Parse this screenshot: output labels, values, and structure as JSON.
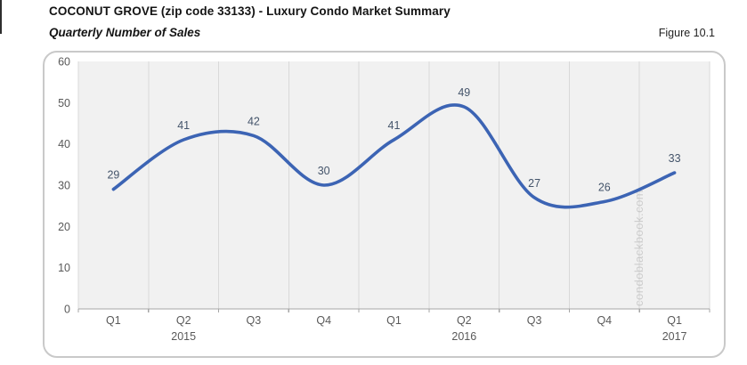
{
  "header": {
    "title": "COCONUT GROVE (zip code 33133) - Luxury Condo Market Summary",
    "subtitle": "Quarterly Number of Sales",
    "figure_label": "Figure 10.1"
  },
  "watermark": "condoblackbook.com",
  "colors": {
    "line": "#3c64b4",
    "data_label": "#44546a",
    "axis_text": "#595959",
    "plot_bg": "#f1f1f1",
    "gridline": "#d9d9d9",
    "axis_line": "#a6a6a6",
    "tick": "#a6a6a6",
    "card_border": "#c9c9c9",
    "watermark": "#c5c5c5"
  },
  "chart_data": {
    "type": "line",
    "title": "Quarterly Number of Sales",
    "categories": [
      "Q1",
      "Q2",
      "Q3",
      "Q4",
      "Q1",
      "Q2",
      "Q3",
      "Q4",
      "Q1"
    ],
    "year_labels": [
      {
        "index": 1,
        "label": "2015"
      },
      {
        "index": 5,
        "label": "2016"
      },
      {
        "index": 8,
        "label": "2017"
      }
    ],
    "values": [
      29,
      41,
      42,
      30,
      41,
      49,
      27,
      26,
      33
    ],
    "ylim": [
      0,
      60
    ],
    "ytick_step": 10,
    "yticks": [
      0,
      10,
      20,
      30,
      40,
      50,
      60
    ],
    "smooth": true,
    "data_labels": true,
    "legend": "none",
    "grid": "vertical"
  }
}
